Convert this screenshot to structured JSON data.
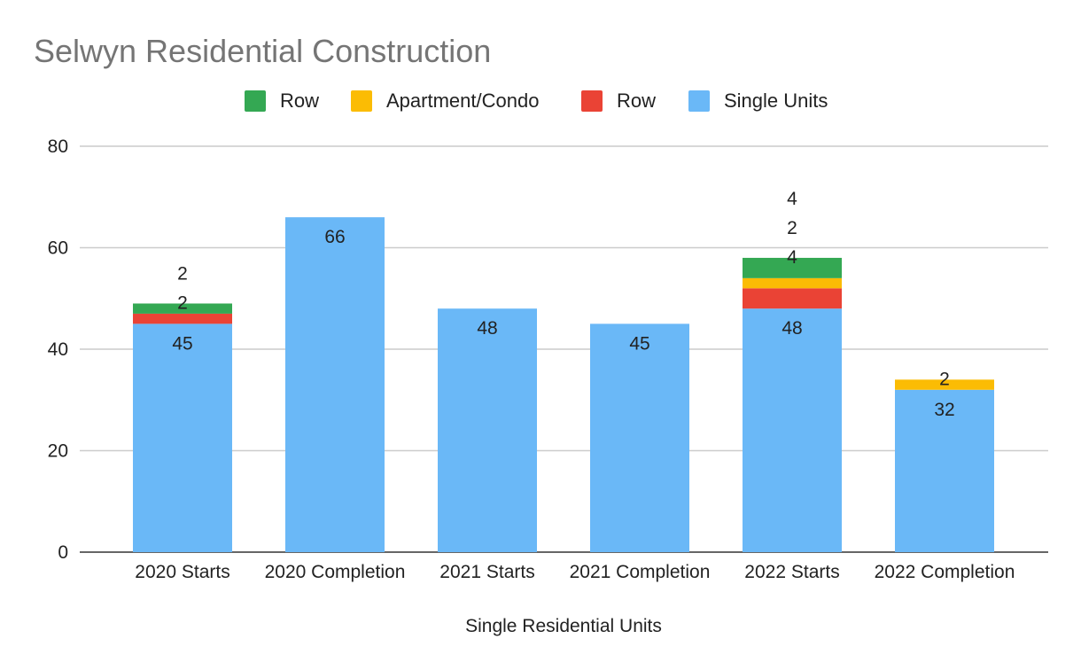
{
  "chart_data": {
    "type": "bar",
    "stacked": true,
    "title": "Selwyn Residential Construction",
    "xlabel": "Single Residential Units",
    "ylabel": "",
    "ylim": [
      0,
      80
    ],
    "yticks": [
      0,
      20,
      40,
      60,
      80
    ],
    "grid": true,
    "legend_position": "top",
    "categories": [
      "2020 Starts",
      "2020 Completion",
      "2021 Starts",
      "2021 Completion",
      "2022 Starts",
      "2022 Completion"
    ],
    "series": [
      {
        "name": "Single Units",
        "color": "#6ab8f7",
        "values": [
          45,
          66,
          48,
          45,
          48,
          32
        ]
      },
      {
        "name": "Row",
        "color": "#ea4335",
        "values": [
          2,
          0,
          0,
          0,
          4,
          0
        ]
      },
      {
        "name": "Apartment/Condo",
        "color": "#fbbc04",
        "values": [
          0,
          0,
          0,
          0,
          2,
          2
        ]
      },
      {
        "name": "Row",
        "color": "#34a853",
        "values": [
          2,
          0,
          0,
          0,
          4,
          0
        ]
      }
    ],
    "legend_order": [
      3,
      2,
      1,
      0
    ]
  }
}
